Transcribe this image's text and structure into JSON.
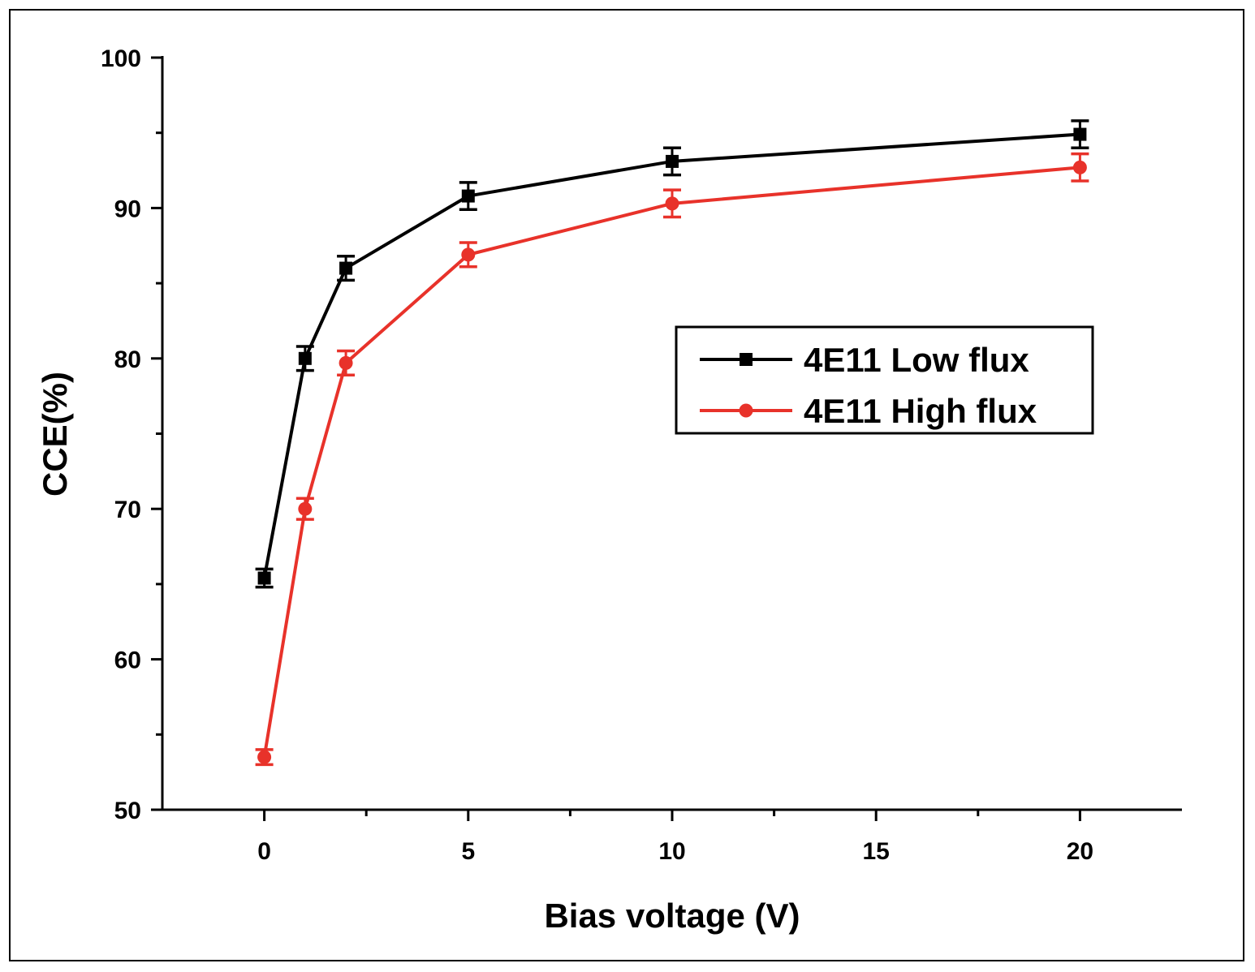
{
  "chart_data": {
    "type": "line",
    "xlabel": "Bias voltage (V)",
    "ylabel": "CCE(%)",
    "xlim": [
      -2.5,
      22.5
    ],
    "ylim": [
      50,
      100
    ],
    "xticks": [
      0,
      5,
      10,
      15,
      20
    ],
    "yticks": [
      50,
      60,
      70,
      80,
      90,
      100
    ],
    "x_minor_ticks": [
      2.5,
      7.5,
      12.5,
      17.5
    ],
    "y_minor_ticks": [
      55,
      65,
      75,
      85,
      95
    ],
    "grid": false,
    "legend_position": "center-right",
    "x": [
      0,
      1,
      2,
      5,
      10,
      20
    ],
    "series": [
      {
        "name": "4E11 Low flux",
        "color": "#000000",
        "marker": "square",
        "values": [
          65.4,
          80.0,
          86.0,
          90.8,
          93.1,
          94.9
        ],
        "errors": [
          0.6,
          0.8,
          0.8,
          0.9,
          0.9,
          0.9
        ]
      },
      {
        "name": "4E11 High flux",
        "color": "#e8322a",
        "marker": "circle",
        "values": [
          53.5,
          70.0,
          79.7,
          86.9,
          90.3,
          92.7
        ],
        "errors": [
          0.5,
          0.7,
          0.8,
          0.8,
          0.9,
          0.9
        ]
      }
    ]
  }
}
